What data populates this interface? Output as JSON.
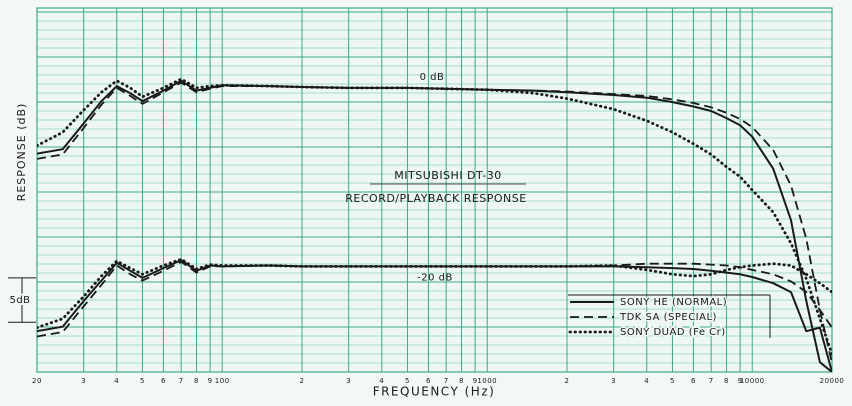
{
  "chart_data": {
    "type": "line",
    "title": "MITSUBISHI DT-30",
    "subtitle": "RECORD/PLAYBACK RESPONSE",
    "x_label": "FREQUENCY (Hz)",
    "y_label": "RESPONSE (dB)",
    "annotations": [
      "0 dB",
      "-20 dB"
    ],
    "scale_bar": {
      "label": "5dB",
      "top": -21.4,
      "size": 5
    },
    "x_log": true,
    "grid": true,
    "legend": "lower right",
    "xlim": [
      20,
      20000
    ],
    "ylim": [
      -32,
      9
    ],
    "xticks": [
      20,
      {
        "value": 30,
        "label": "3"
      },
      {
        "value": 40,
        "label": "4"
      },
      {
        "value": 50,
        "label": "5"
      },
      {
        "value": 60,
        "label": "6"
      },
      {
        "value": 70,
        "label": "7"
      },
      {
        "value": 80,
        "label": "8"
      },
      {
        "value": 90,
        "label": "9"
      },
      100,
      {
        "value": 200,
        "label": "2"
      },
      {
        "value": 300,
        "label": "3"
      },
      {
        "value": 400,
        "label": "4"
      },
      {
        "value": 500,
        "label": "5"
      },
      {
        "value": 600,
        "label": "6"
      },
      {
        "value": 700,
        "label": "7"
      },
      {
        "value": 800,
        "label": "8"
      },
      {
        "value": 900,
        "label": "9"
      },
      1000,
      {
        "value": 2000,
        "label": "2"
      },
      {
        "value": 3000,
        "label": "3"
      },
      {
        "value": 4000,
        "label": "4"
      },
      {
        "value": 5000,
        "label": "5"
      },
      {
        "value": 6000,
        "label": "6"
      },
      {
        "value": 7000,
        "label": "7"
      },
      {
        "value": 8000,
        "label": "8"
      },
      {
        "value": 9000,
        "label": "9"
      },
      10000,
      20000
    ],
    "x": [
      20,
      25,
      30,
      35,
      40,
      45,
      50,
      60,
      70,
      80,
      90,
      100,
      150,
      200,
      300,
      500,
      700,
      1000,
      1500,
      2000,
      3000,
      4000,
      5000,
      6000,
      7000,
      8000,
      9000,
      10000,
      12000,
      14000,
      16000,
      18000,
      20000
    ],
    "series": [
      {
        "name": "SONY HE (NORMAL)",
        "style": "solid",
        "color": "#1a1a1a",
        "values": [
          -7.4,
          -6.9,
          -4,
          -1.5,
          0.2,
          -0.6,
          -1.5,
          -0.3,
          0.8,
          -0.3,
          0,
          0.3,
          0.2,
          0.1,
          0,
          0,
          -0.1,
          -0.2,
          -0.3,
          -0.5,
          -0.8,
          -1.1,
          -1.6,
          -2.1,
          -2.6,
          -3.4,
          -4.2,
          -5.5,
          -9.1,
          -14.9,
          -24,
          -30.9,
          -32
        ],
        "values_minus20": [
          -27.4,
          -26.9,
          -24,
          -21.7,
          -19.7,
          -20.6,
          -21.4,
          -20.3,
          -19.4,
          -20.6,
          -20,
          -20.1,
          -20,
          -20.1,
          -20.1,
          -20.1,
          -20.1,
          -20.1,
          -20.1,
          -20.1,
          -20.1,
          -20.2,
          -20.3,
          -20.4,
          -20.6,
          -20.8,
          -21,
          -21.3,
          -22,
          -23,
          -27.4,
          -27,
          -32
        ]
      },
      {
        "name": "TDK SA (SPECIAL)",
        "style": "dashed",
        "color": "#1a1a1a",
        "values": [
          -8,
          -7.5,
          -4.5,
          -1.9,
          0,
          -0.9,
          -1.8,
          -0.5,
          0.6,
          -0.5,
          -0.1,
          0.2,
          0.2,
          0.1,
          0,
          0,
          -0.1,
          -0.2,
          -0.3,
          -0.4,
          -0.7,
          -0.9,
          -1.3,
          -1.7,
          -2.2,
          -2.8,
          -3.5,
          -4.4,
          -7,
          -11,
          -17,
          -25,
          -31
        ],
        "values_minus20": [
          -28,
          -27.5,
          -24.6,
          -22.2,
          -20,
          -21,
          -21.7,
          -20.6,
          -19.6,
          -20.8,
          -20.1,
          -20.1,
          -20,
          -20.1,
          -20.1,
          -20.1,
          -20.1,
          -20.1,
          -20.1,
          -20.1,
          -20,
          -19.8,
          -19.8,
          -19.8,
          -19.9,
          -20,
          -20.2,
          -20.5,
          -21,
          -21.8,
          -23,
          -25,
          -27
        ]
      },
      {
        "name": "SONY DUAD (Fe Cr)",
        "style": "dotted",
        "color": "#1a1a1a",
        "values": [
          -6.5,
          -5,
          -2.5,
          -0.5,
          0.8,
          0,
          -1,
          0,
          1,
          0,
          0.2,
          0.3,
          0.2,
          0.1,
          0,
          0,
          -0.1,
          -0.2,
          -0.6,
          -1.2,
          -2.4,
          -3.7,
          -5,
          -6.3,
          -7.5,
          -8.9,
          -10,
          -11.5,
          -14,
          -17.5,
          -21.5,
          -26,
          -30
        ],
        "values_minus20": [
          -27,
          -26,
          -23.5,
          -21.2,
          -19.5,
          -20.3,
          -21,
          -20,
          -19.3,
          -20.4,
          -19.9,
          -20,
          -20,
          -20.1,
          -20.1,
          -20.1,
          -20.1,
          -20.1,
          -20.1,
          -20.1,
          -20,
          -20.5,
          -21,
          -21.2,
          -21,
          -20.5,
          -20.2,
          -20,
          -19.8,
          -20,
          -21,
          -22,
          -23
        ]
      }
    ]
  }
}
